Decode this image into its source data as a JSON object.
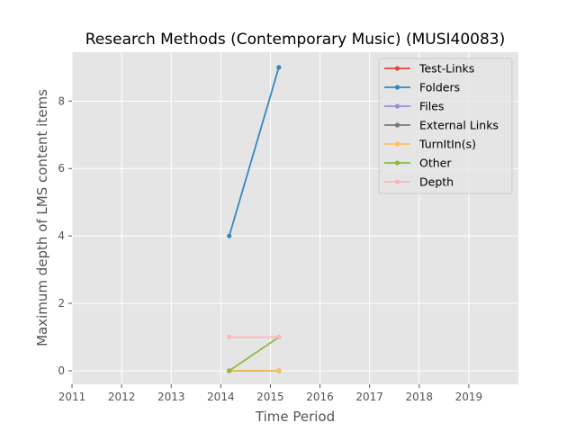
{
  "chart_data": {
    "type": "line",
    "title": "Research Methods (Contemporary Music) (MUSI40083)",
    "xlabel": "Time Period",
    "ylabel": "Maximum depth of LMS content items",
    "xlim": [
      2011,
      2020
    ],
    "ylim": [
      -0.4,
      9.45
    ],
    "xticks": [
      2011,
      2012,
      2013,
      2014,
      2015,
      2016,
      2017,
      2018,
      2019
    ],
    "yticks": [
      0,
      2,
      4,
      6,
      8
    ],
    "grid": true,
    "legend_position": "upper-right",
    "series": [
      {
        "name": "Test-Links",
        "color": "#E24A33",
        "x": [
          2014.17,
          2015.17
        ],
        "y": [
          0,
          0
        ]
      },
      {
        "name": "Folders",
        "color": "#348ABD",
        "x": [
          2014.17,
          2015.17
        ],
        "y": [
          4,
          9
        ]
      },
      {
        "name": "Files",
        "color": "#988ED5",
        "x": [
          2014.17,
          2015.17
        ],
        "y": [
          0,
          0
        ]
      },
      {
        "name": "External Links",
        "color": "#777777",
        "x": [
          2014.17,
          2015.17
        ],
        "y": [
          0,
          0
        ]
      },
      {
        "name": "TurnItIn(s)",
        "color": "#FBC15E",
        "x": [
          2014.17,
          2015.17
        ],
        "y": [
          0,
          0
        ]
      },
      {
        "name": "Other",
        "color": "#8EBA42",
        "x": [
          2014.17,
          2015.17
        ],
        "y": [
          0,
          1
        ]
      },
      {
        "name": "Depth",
        "color": "#FFB5B8",
        "x": [
          2014.17,
          2015.17
        ],
        "y": [
          1,
          1
        ]
      }
    ]
  }
}
